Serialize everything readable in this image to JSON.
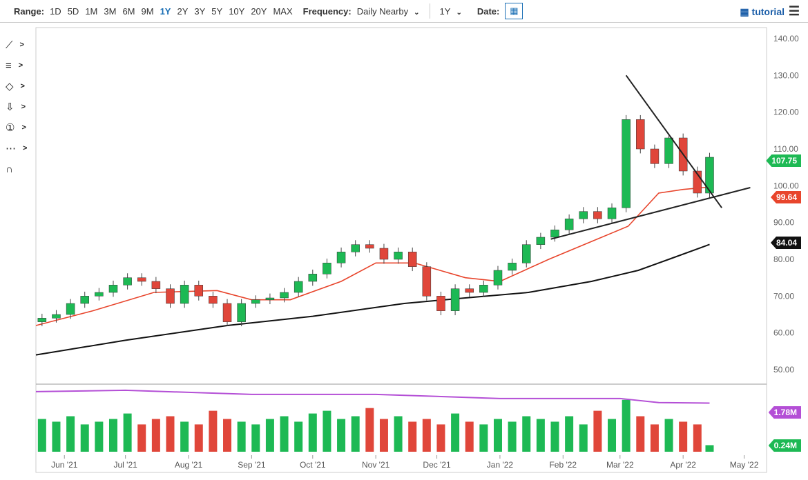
{
  "toolbar": {
    "range_label": "Range:",
    "ranges": [
      "1D",
      "5D",
      "1M",
      "3M",
      "6M",
      "9M",
      "1Y",
      "2Y",
      "3Y",
      "5Y",
      "10Y",
      "20Y",
      "MAX"
    ],
    "active_range": "1Y",
    "frequency_label": "Frequency:",
    "frequency_value": "Daily Nearby",
    "period_value": "1Y",
    "date_label": "Date:",
    "tutorial_label": "tutorial"
  },
  "tools": [
    "trendline-tool",
    "fibonacci-tool",
    "shapes-tool",
    "arrow-tool",
    "annotation-tool",
    "measure-tool",
    "magnet-tool"
  ],
  "colors": {
    "up": "#1db954",
    "down": "#e0463a",
    "ma50": "#e8452c",
    "ma200": "#111111",
    "volume_avg": "#b44fd6",
    "accent": "#1a6fb5"
  },
  "chart_data": {
    "type": "candlestick",
    "ylim": [
      50,
      140
    ],
    "y_ticks": [
      "140.00",
      "130.00",
      "120.00",
      "110.00",
      "100.00",
      "90.00",
      "80.00",
      "70.00",
      "60.00",
      "50.00"
    ],
    "x_ticks": [
      [
        "2021-06-01",
        "Jun '21"
      ],
      [
        "2021-07-01",
        "Jul '21"
      ],
      [
        "2021-08-01",
        "Aug '21"
      ],
      [
        "2021-09-01",
        "Sep '21"
      ],
      [
        "2021-10-01",
        "Oct '21"
      ],
      [
        "2021-11-01",
        "Nov '21"
      ],
      [
        "2021-12-01",
        "Dec '21"
      ],
      [
        "2022-01-01",
        "Jan '22"
      ],
      [
        "2022-02-01",
        "Feb '22"
      ],
      [
        "2022-03-01",
        "Mar '22"
      ],
      [
        "2022-04-01",
        "Apr '22"
      ],
      [
        "2022-05-01",
        "May '22"
      ]
    ],
    "xlim": [
      "2021-05-18",
      "2022-05-12"
    ],
    "candles": [
      [
        "2021-05-21",
        63,
        64
      ],
      [
        "2021-05-28",
        64,
        65
      ],
      [
        "2021-06-04",
        65,
        68
      ],
      [
        "2021-06-11",
        68,
        70
      ],
      [
        "2021-06-18",
        70,
        71
      ],
      [
        "2021-06-25",
        71,
        73
      ],
      [
        "2021-07-02",
        73,
        75
      ],
      [
        "2021-07-09",
        75,
        74
      ],
      [
        "2021-07-16",
        74,
        72
      ],
      [
        "2021-07-23",
        72,
        68
      ],
      [
        "2021-07-30",
        68,
        73
      ],
      [
        "2021-08-06",
        73,
        70
      ],
      [
        "2021-08-13",
        70,
        68
      ],
      [
        "2021-08-20",
        68,
        63
      ],
      [
        "2021-08-27",
        63,
        68
      ],
      [
        "2021-09-03",
        68,
        69
      ],
      [
        "2021-09-10",
        69,
        69.5
      ],
      [
        "2021-09-17",
        69.5,
        71
      ],
      [
        "2021-09-24",
        71,
        74
      ],
      [
        "2021-10-01",
        74,
        76
      ],
      [
        "2021-10-08",
        76,
        79
      ],
      [
        "2021-10-15",
        79,
        82
      ],
      [
        "2021-10-22",
        82,
        84
      ],
      [
        "2021-10-29",
        84,
        83
      ],
      [
        "2021-11-05",
        83,
        80
      ],
      [
        "2021-11-12",
        80,
        82
      ],
      [
        "2021-11-19",
        82,
        78
      ],
      [
        "2021-11-26",
        78,
        70
      ],
      [
        "2021-12-03",
        70,
        66
      ],
      [
        "2021-12-10",
        66,
        72
      ],
      [
        "2021-12-17",
        72,
        71
      ],
      [
        "2021-12-24",
        71,
        73
      ],
      [
        "2021-12-31",
        73,
        77
      ],
      [
        "2022-01-07",
        77,
        79
      ],
      [
        "2022-01-14",
        79,
        84
      ],
      [
        "2022-01-21",
        84,
        86
      ],
      [
        "2022-01-28",
        86,
        88
      ],
      [
        "2022-02-04",
        88,
        91
      ],
      [
        "2022-02-11",
        91,
        93
      ],
      [
        "2022-02-18",
        93,
        91
      ],
      [
        "2022-02-25",
        91,
        94
      ],
      [
        "2022-03-04",
        94,
        118
      ],
      [
        "2022-03-11",
        118,
        110
      ],
      [
        "2022-03-18",
        110,
        106
      ],
      [
        "2022-03-25",
        106,
        113
      ],
      [
        "2022-04-01",
        113,
        104
      ],
      [
        "2022-04-08",
        104,
        98
      ],
      [
        "2022-04-14",
        98,
        107.75
      ]
    ],
    "ma50": [
      [
        "2021-05-18",
        62
      ],
      [
        "2021-06-15",
        66
      ],
      [
        "2021-07-15",
        71
      ],
      [
        "2021-08-15",
        71.5
      ],
      [
        "2021-09-01",
        69
      ],
      [
        "2021-09-20",
        69
      ],
      [
        "2021-10-15",
        74
      ],
      [
        "2021-11-01",
        79
      ],
      [
        "2021-11-20",
        79
      ],
      [
        "2021-12-15",
        75
      ],
      [
        "2022-01-01",
        74
      ],
      [
        "2022-01-25",
        80
      ],
      [
        "2022-02-20",
        86
      ],
      [
        "2022-03-05",
        89
      ],
      [
        "2022-03-20",
        98
      ],
      [
        "2022-04-01",
        99
      ],
      [
        "2022-04-14",
        99.64
      ]
    ],
    "ma200": [
      [
        "2021-05-18",
        54
      ],
      [
        "2021-07-01",
        58
      ],
      [
        "2021-08-20",
        62
      ],
      [
        "2021-10-01",
        64.5
      ],
      [
        "2021-11-15",
        68
      ],
      [
        "2021-12-15",
        69.5
      ],
      [
        "2022-01-15",
        71
      ],
      [
        "2022-02-15",
        74
      ],
      [
        "2022-03-10",
        77
      ],
      [
        "2022-03-25",
        80
      ],
      [
        "2022-04-14",
        84.04
      ]
    ],
    "trendlines": [
      [
        [
          "2022-01-26",
          85.5
        ],
        [
          "2022-05-04",
          99.5
        ]
      ],
      [
        [
          "2022-03-04",
          130
        ],
        [
          "2022-04-20",
          94
        ]
      ]
    ],
    "volume": [
      1.2,
      1.1,
      1.3,
      1.0,
      1.1,
      1.2,
      1.4,
      1.0,
      1.2,
      1.3,
      1.1,
      1.0,
      1.5,
      1.2,
      1.1,
      1.0,
      1.2,
      1.3,
      1.1,
      1.4,
      1.5,
      1.2,
      1.3,
      1.6,
      1.2,
      1.3,
      1.1,
      1.2,
      1.0,
      1.4,
      1.1,
      1.0,
      1.2,
      1.1,
      1.3,
      1.2,
      1.1,
      1.3,
      1.0,
      1.5,
      1.2,
      1.9,
      1.3,
      1.0,
      1.2,
      1.1,
      1.0,
      0.24
    ],
    "volume_avg": [
      [
        "2021-05-18",
        2.2
      ],
      [
        "2021-07-01",
        2.25
      ],
      [
        "2021-09-01",
        2.1
      ],
      [
        "2021-11-01",
        2.1
      ],
      [
        "2022-01-01",
        1.95
      ],
      [
        "2022-03-01",
        1.95
      ],
      [
        "2022-03-20",
        1.8
      ],
      [
        "2022-04-14",
        1.78
      ]
    ],
    "last_price": "107.75",
    "ma50_value": "99.64",
    "ma200_value": "84.04",
    "volume_avg_value": "1.78M",
    "volume_value": "0.24M"
  }
}
